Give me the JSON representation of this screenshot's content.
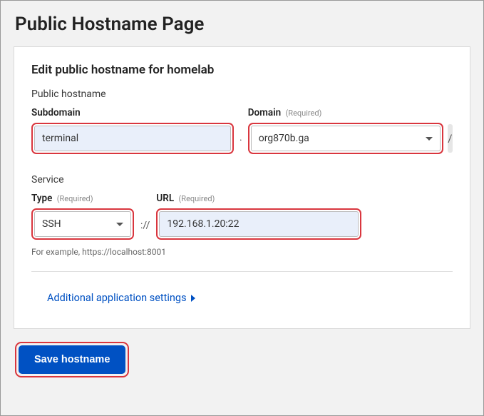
{
  "page": {
    "title": "Public Hostname Page"
  },
  "card": {
    "title": "Edit public hostname for homelab",
    "hostname_section_label": "Public hostname",
    "service_section_label": "Service",
    "subdomain": {
      "label": "Subdomain",
      "value": "terminal"
    },
    "domain": {
      "label": "Domain",
      "required_text": "(Required)",
      "value": "org870b.ga"
    },
    "path_separator": "/",
    "dot_separator": ".",
    "type": {
      "label": "Type",
      "required_text": "(Required)",
      "value": "SSH"
    },
    "protocol_separator": "://",
    "url": {
      "label": "URL",
      "required_text": "(Required)",
      "value": "192.168.1.20:22"
    },
    "hint": "For example, https://localhost:8001",
    "accordion_label": "Additional application settings"
  },
  "actions": {
    "save_label": "Save hostname"
  },
  "colors": {
    "highlight_border": "#d9363e",
    "primary": "#0051c3",
    "input_bg": "#e9effa"
  }
}
